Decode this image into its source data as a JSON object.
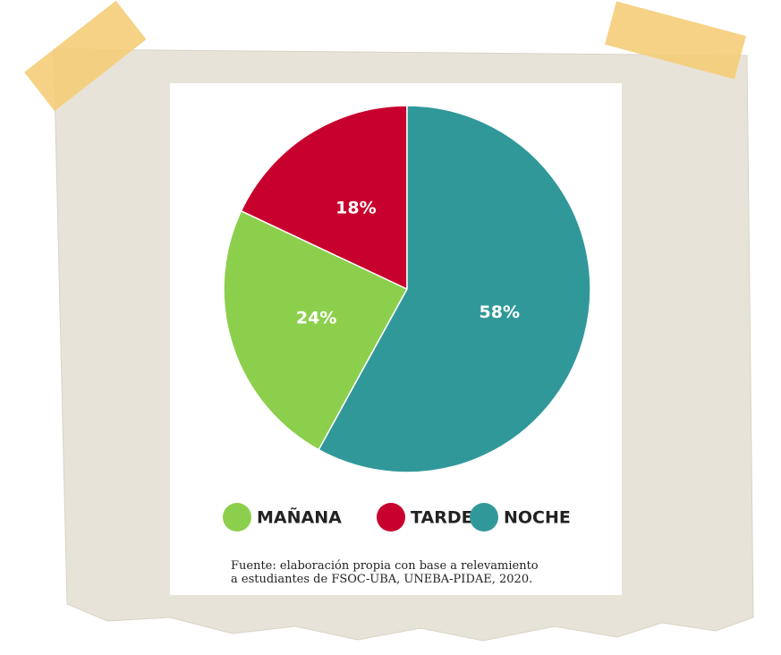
{
  "chart_data": {
    "type": "pie",
    "categories": [
      "MAÑANA",
      "TARDE",
      "NOCHE"
    ],
    "values": [
      24,
      18,
      58
    ],
    "value_labels": [
      "24%",
      "18%",
      "58%"
    ],
    "colors": [
      "#8ccf4d",
      "#c8002e",
      "#31989a"
    ],
    "legend": "bottom",
    "source": [
      "Fuente: elaboración propia con base a relevamiento",
      "a estudiantes de FSOC-UBA, UNEBA-PIDAE, 2020."
    ]
  }
}
